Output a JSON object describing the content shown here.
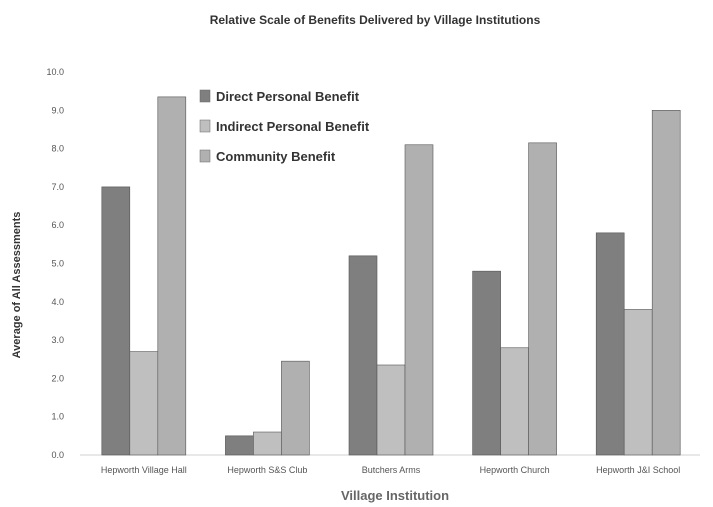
{
  "chart_data": {
    "type": "bar",
    "title": "Relative Scale of Benefits Delivered by Village Institutions",
    "xlabel": "Village Institution",
    "ylabel": "Average of All Assessments",
    "ylim": [
      0,
      10
    ],
    "yticks": [
      "0.0",
      "1.0",
      "2.0",
      "3.0",
      "4.0",
      "5.0",
      "6.0",
      "7.0",
      "8.0",
      "9.0",
      "10.0"
    ],
    "grid": false,
    "legend_position": "top-left",
    "categories": [
      "Hepworth Village Hall",
      "Hepworth S&S Club",
      "Butchers Arms",
      "Hepworth Church",
      "Hepworth J&I School"
    ],
    "series": [
      {
        "name": "Direct Personal Benefit",
        "color": "#7f7f7f",
        "values": [
          7.0,
          0.5,
          5.2,
          4.8,
          5.8
        ]
      },
      {
        "name": "Indirect Personal Benefit",
        "color": "#bfbfbf",
        "values": [
          2.7,
          0.6,
          2.35,
          2.8,
          3.8
        ]
      },
      {
        "name": "Community Benefit",
        "color": "#b0b0b0",
        "values": [
          9.35,
          2.45,
          8.1,
          8.15,
          9.0
        ]
      }
    ]
  }
}
